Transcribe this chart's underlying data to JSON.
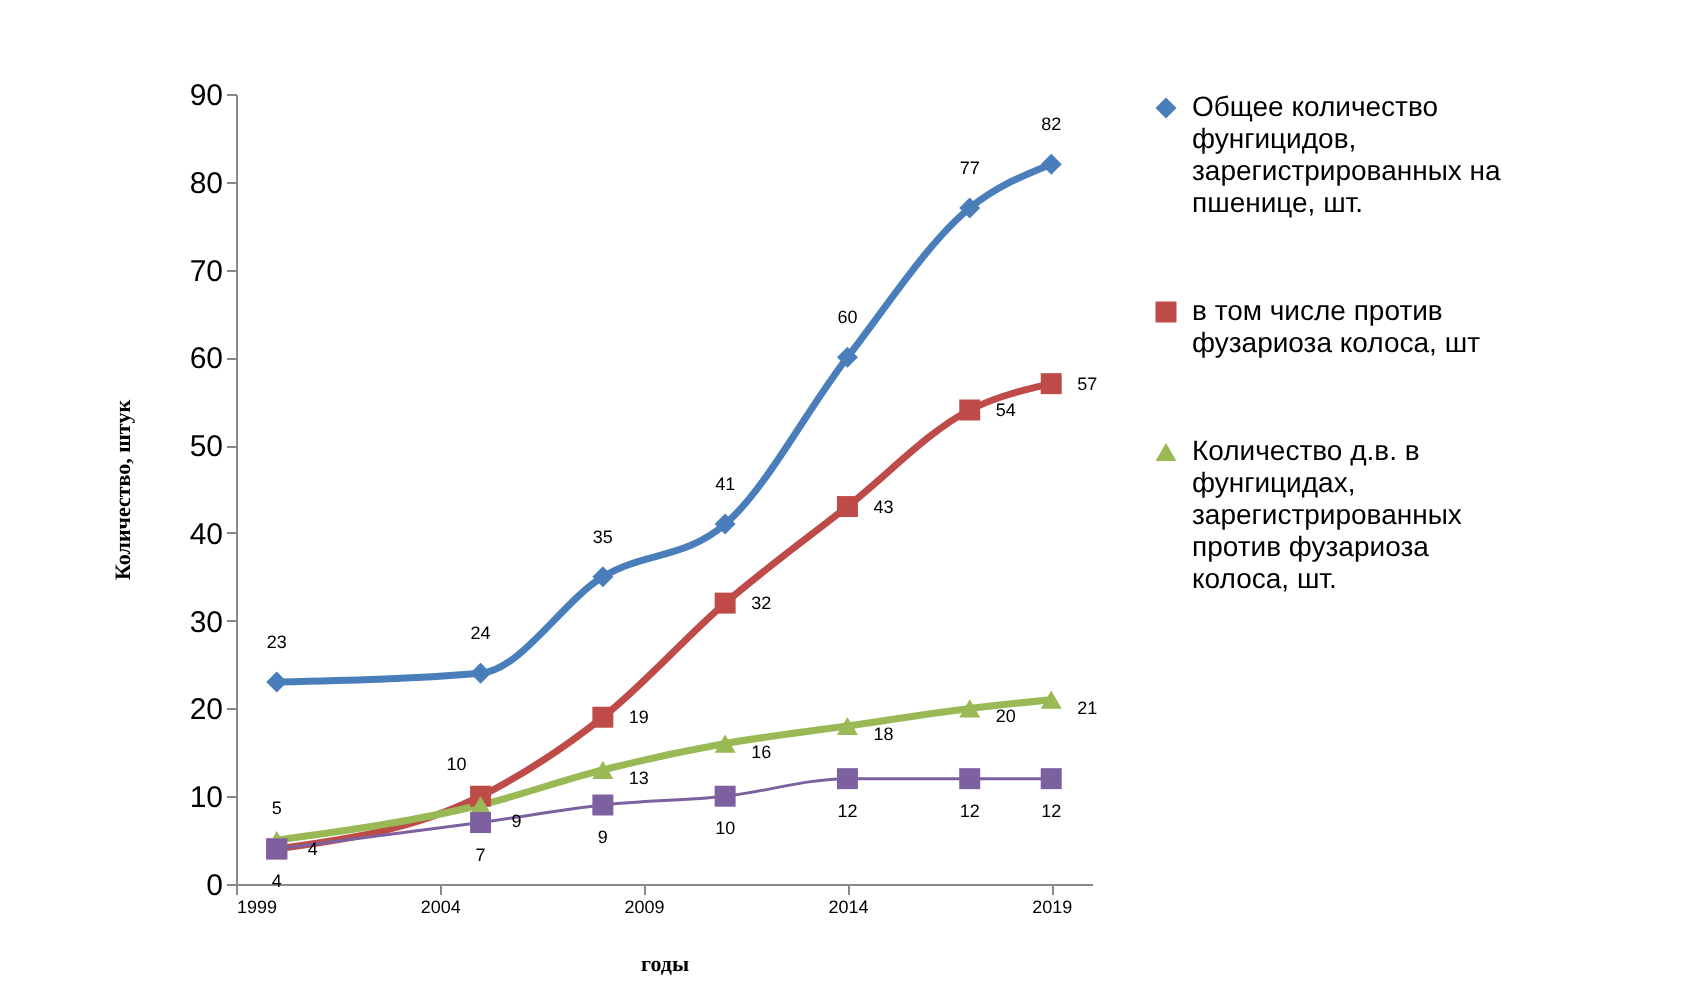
{
  "chart_data": {
    "type": "line",
    "xlabel": "годы",
    "ylabel": "Количество, штук",
    "xlim": [
      1999,
      2020
    ],
    "xticks": [
      1999,
      2004,
      2009,
      2014,
      2019
    ],
    "ylim": [
      0,
      90
    ],
    "yticks": [
      0,
      10,
      20,
      30,
      40,
      50,
      60,
      70,
      80,
      90
    ],
    "x": [
      2000,
      2005,
      2008,
      2011,
      2014,
      2017,
      2019
    ],
    "series": [
      {
        "name": "Общее количество фунгицидов, зарегистрированных на пшенице, шт.",
        "color": "#4a7ebb",
        "marker": "diamond",
        "values": [
          23,
          24,
          35,
          41,
          60,
          77,
          82
        ]
      },
      {
        "name": "в том числе против фузариоза колоса, шт",
        "color": "#be4b48",
        "marker": "square",
        "values": [
          4,
          10,
          19,
          32,
          43,
          54,
          57
        ]
      },
      {
        "name": "Количество д.в. в фунгицидах, зарегистрированных против фузариоза колоса, шт.",
        "color": "#98b954",
        "marker": "triangle",
        "values": [
          5,
          9,
          13,
          16,
          18,
          20,
          21
        ]
      },
      {
        "color": "#7d60a0",
        "marker": "square",
        "values": [
          4,
          7,
          9,
          10,
          12,
          12,
          12
        ]
      }
    ],
    "data_labels": true,
    "grid": false,
    "legend": "right"
  }
}
